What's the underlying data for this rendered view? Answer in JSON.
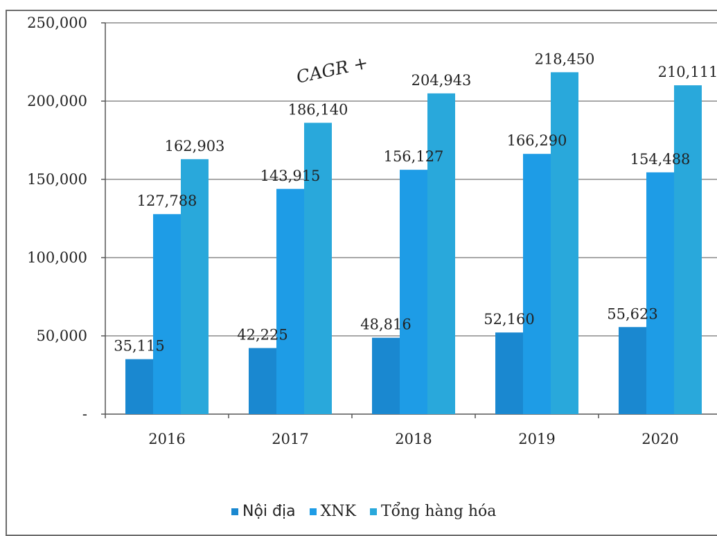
{
  "chart_data": {
    "type": "bar",
    "title": "",
    "xlabel": "",
    "ylabel": "",
    "categories": [
      "2016",
      "2017",
      "2018",
      "2019",
      "2020"
    ],
    "series": [
      {
        "name": "Nội địa",
        "color": "#1a88d0",
        "values": [
          35115,
          42225,
          48816,
          52160,
          55623
        ]
      },
      {
        "name": "XNK",
        "color": "#1e9ce6",
        "values": [
          127788,
          143915,
          156127,
          166290,
          154488
        ]
      },
      {
        "name": "Tổng hàng hóa",
        "color": "#29a8db",
        "values": [
          162903,
          186140,
          204943,
          218450,
          210111
        ]
      }
    ],
    "data_labels": [
      [
        "35,115",
        "42,225",
        "48,816",
        "52,160",
        "55,623"
      ],
      [
        "127,788",
        "143,915",
        "156,127",
        "166,290",
        "154,488"
      ],
      [
        "162,903",
        "186,140",
        "204,943",
        "218,450",
        "210,111"
      ]
    ],
    "ylim": [
      0,
      250000
    ],
    "yticks": [
      0,
      50000,
      100000,
      150000,
      200000,
      250000
    ],
    "ytick_labels": [
      "-",
      "50,000",
      "100,000",
      "150,000",
      "200,000",
      "250,000"
    ],
    "grid": true,
    "legend": "bottom",
    "annotation": "CAGR +"
  }
}
